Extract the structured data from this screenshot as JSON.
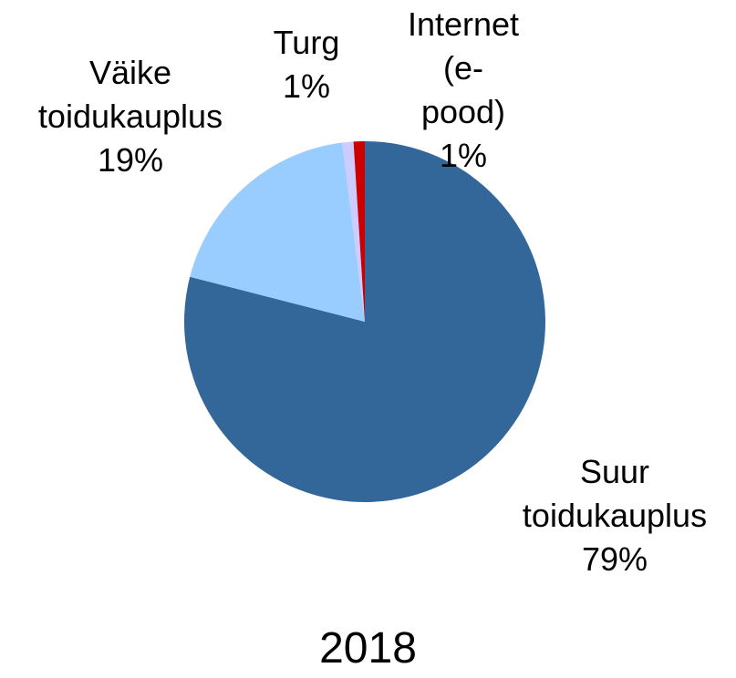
{
  "chart_data": {
    "type": "pie",
    "title": "2018",
    "categories": [
      "Suur toidukauplus",
      "Väike toidukauplus",
      "Turg",
      "Internet (e-pood)"
    ],
    "values": [
      79,
      19,
      1,
      1
    ],
    "value_labels": [
      "79%",
      "19%",
      "1%",
      "1%"
    ],
    "colors": [
      "#336699",
      "#99ccff",
      "#ccccff",
      "#cc0000"
    ]
  }
}
